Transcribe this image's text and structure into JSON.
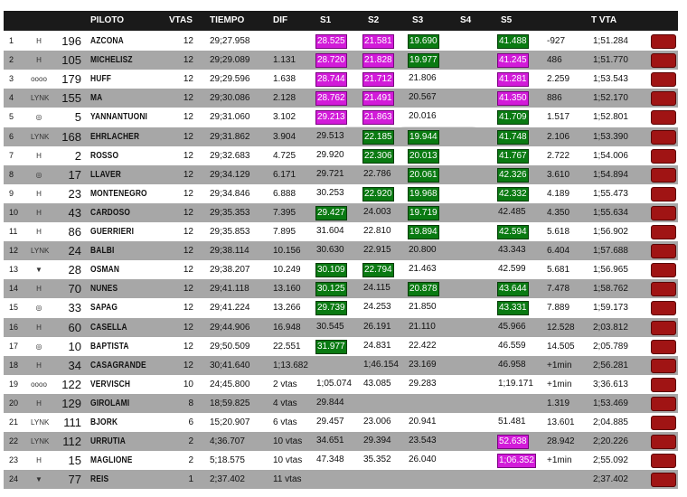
{
  "headers": {
    "piloto": "PILOTO",
    "vtas": "VTAS",
    "tiempo": "TIEMPO",
    "dif": "DIF",
    "s1": "S1",
    "s2": "S2",
    "s3": "S3",
    "s4": "S4",
    "s5": "S5",
    "tvta": "T VTA"
  },
  "colors": {
    "purple": "#d21bd9",
    "green": "#0a7a12",
    "flag": "#a01414",
    "header": "#1a1a1a",
    "row_alt": "#a7a7a7"
  },
  "rows": [
    {
      "pos": "1",
      "brand": "hyundai-logo",
      "logo": "H",
      "num": "196",
      "name": "AZCONA",
      "vtas": "12",
      "tiempo": "29;27.958",
      "dif": "",
      "s1": "28.525",
      "s1c": "purple",
      "s2": "21.581",
      "s2c": "purple",
      "s3": "19.690",
      "s3c": "green",
      "s4": "",
      "s5": "41.488",
      "s5c": "green",
      "gap": "-927",
      "best": "1;51.284"
    },
    {
      "pos": "2",
      "brand": "hyundai-logo",
      "logo": "H",
      "num": "105",
      "name": "MICHELISZ",
      "vtas": "12",
      "tiempo": "29;29.089",
      "dif": "1.131",
      "s1": "28.720",
      "s1c": "purple",
      "s2": "21.828",
      "s2c": "purple",
      "s3": "19.977",
      "s3c": "green",
      "s4": "",
      "s5": "41.245",
      "s5c": "purple",
      "gap": "486",
      "best": "1;51.770"
    },
    {
      "pos": "3",
      "brand": "audi-logo",
      "logo": "oooo",
      "num": "179",
      "name": "HUFF",
      "vtas": "12",
      "tiempo": "29;29.596",
      "dif": "1.638",
      "s1": "28.744",
      "s1c": "purple",
      "s2": "21.712",
      "s2c": "purple",
      "s3": "21.806",
      "s3c": "",
      "s4": "",
      "s5": "41.281",
      "s5c": "purple",
      "gap": "2.259",
      "best": "1;53.543"
    },
    {
      "pos": "4",
      "brand": "lynkco-logo",
      "logo": "LYNK",
      "num": "155",
      "name": "MA",
      "vtas": "12",
      "tiempo": "29;30.086",
      "dif": "2.128",
      "s1": "28.762",
      "s1c": "purple",
      "s2": "21.491",
      "s2c": "purple",
      "s3": "20.567",
      "s3c": "",
      "s4": "",
      "s5": "41.350",
      "s5c": "purple",
      "gap": "886",
      "best": "1;52.170"
    },
    {
      "pos": "5",
      "brand": "toyota-logo",
      "logo": "◎",
      "num": "5",
      "name": "YANNANTUONI",
      "vtas": "12",
      "tiempo": "29;31.060",
      "dif": "3.102",
      "s1": "29.213",
      "s1c": "purple",
      "s2": "21.863",
      "s2c": "purple",
      "s3": "20.016",
      "s3c": "",
      "s4": "",
      "s5": "41.709",
      "s5c": "green",
      "gap": "1.517",
      "best": "1;52.801"
    },
    {
      "pos": "6",
      "brand": "lynkco-logo",
      "logo": "LYNK",
      "num": "168",
      "name": "EHRLACHER",
      "vtas": "12",
      "tiempo": "29;31.862",
      "dif": "3.904",
      "s1": "29.513",
      "s1c": "",
      "s2": "22.185",
      "s2c": "green",
      "s3": "19.944",
      "s3c": "green",
      "s4": "",
      "s5": "41.748",
      "s5c": "green",
      "gap": "2.106",
      "best": "1;53.390"
    },
    {
      "pos": "7",
      "brand": "hyundai-logo",
      "logo": "H",
      "num": "2",
      "name": "ROSSO",
      "vtas": "12",
      "tiempo": "29;32.683",
      "dif": "4.725",
      "s1": "29.920",
      "s1c": "",
      "s2": "22.306",
      "s2c": "green",
      "s3": "20.013",
      "s3c": "green",
      "s4": "",
      "s5": "41.767",
      "s5c": "green",
      "gap": "2.722",
      "best": "1;54.006"
    },
    {
      "pos": "8",
      "brand": "toyota-logo",
      "logo": "◎",
      "num": "17",
      "name": "LLAVER",
      "vtas": "12",
      "tiempo": "29;34.129",
      "dif": "6.171",
      "s1": "29.721",
      "s1c": "",
      "s2": "22.786",
      "s2c": "",
      "s3": "20.061",
      "s3c": "green",
      "s4": "",
      "s5": "42.326",
      "s5c": "green",
      "gap": "3.610",
      "best": "1;54.894"
    },
    {
      "pos": "9",
      "brand": "honda-logo",
      "logo": "H",
      "num": "23",
      "name": "MONTENEGRO",
      "vtas": "12",
      "tiempo": "29;34.846",
      "dif": "6.888",
      "s1": "30.253",
      "s1c": "",
      "s2": "22.920",
      "s2c": "green",
      "s3": "19.968",
      "s3c": "green",
      "s4": "",
      "s5": "42.332",
      "s5c": "green",
      "gap": "4.189",
      "best": "1;55.473"
    },
    {
      "pos": "10",
      "brand": "hyundai-logo",
      "logo": "H",
      "num": "43",
      "name": "CARDOSO",
      "vtas": "12",
      "tiempo": "29;35.353",
      "dif": "7.395",
      "s1": "29.427",
      "s1c": "green",
      "s2": "24.003",
      "s2c": "",
      "s3": "19.719",
      "s3c": "green",
      "s4": "",
      "s5": "42.485",
      "s5c": "",
      "gap": "4.350",
      "best": "1;55.634"
    },
    {
      "pos": "11",
      "brand": "hyundai-logo",
      "logo": "H",
      "num": "86",
      "name": "GUERRIERI",
      "vtas": "12",
      "tiempo": "29;35.853",
      "dif": "7.895",
      "s1": "31.604",
      "s1c": "",
      "s2": "22.810",
      "s2c": "",
      "s3": "19.894",
      "s3c": "green",
      "s4": "",
      "s5": "42.594",
      "s5c": "green",
      "gap": "5.618",
      "best": "1;56.902"
    },
    {
      "pos": "12",
      "brand": "lynkco-logo",
      "logo": "LYNK",
      "num": "24",
      "name": "BALBI",
      "vtas": "12",
      "tiempo": "29;38.114",
      "dif": "10.156",
      "s1": "30.630",
      "s1c": "",
      "s2": "22.915",
      "s2c": "",
      "s3": "20.800",
      "s3c": "",
      "s4": "",
      "s5": "43.343",
      "s5c": "",
      "gap": "6.404",
      "best": "1;57.688"
    },
    {
      "pos": "13",
      "brand": "chevrolet-logo",
      "logo": "▼",
      "num": "28",
      "name": "OSMAN",
      "vtas": "12",
      "tiempo": "29;38.207",
      "dif": "10.249",
      "s1": "30.109",
      "s1c": "green",
      "s2": "22.794",
      "s2c": "green",
      "s3": "21.463",
      "s3c": "",
      "s4": "",
      "s5": "42.599",
      "s5c": "",
      "gap": "5.681",
      "best": "1;56.965"
    },
    {
      "pos": "14",
      "brand": "hyundai-logo",
      "logo": "H",
      "num": "70",
      "name": "NUNES",
      "vtas": "12",
      "tiempo": "29;41.118",
      "dif": "13.160",
      "s1": "30.125",
      "s1c": "green",
      "s2": "24.115",
      "s2c": "",
      "s3": "20.878",
      "s3c": "green",
      "s4": "",
      "s5": "43.644",
      "s5c": "green",
      "gap": "7.478",
      "best": "1;58.762"
    },
    {
      "pos": "15",
      "brand": "toyota-logo",
      "logo": "◎",
      "num": "33",
      "name": "SAPAG",
      "vtas": "12",
      "tiempo": "29;41.224",
      "dif": "13.266",
      "s1": "29.739",
      "s1c": "green",
      "s2": "24.253",
      "s2c": "",
      "s3": "21.850",
      "s3c": "",
      "s4": "",
      "s5": "43.331",
      "s5c": "green",
      "gap": "7.889",
      "best": "1;59.173"
    },
    {
      "pos": "16",
      "brand": "honda-logo",
      "logo": "H",
      "num": "60",
      "name": "CASELLA",
      "vtas": "12",
      "tiempo": "29;44.906",
      "dif": "16.948",
      "s1": "30.545",
      "s1c": "",
      "s2": "26.191",
      "s2c": "",
      "s3": "21.110",
      "s3c": "",
      "s4": "",
      "s5": "45.966",
      "s5c": "",
      "gap": "12.528",
      "best": "2;03.812"
    },
    {
      "pos": "17",
      "brand": "toyota-logo",
      "logo": "◎",
      "num": "10",
      "name": "BAPTISTA",
      "vtas": "12",
      "tiempo": "29;50.509",
      "dif": "22.551",
      "s1": "31.977",
      "s1c": "green",
      "s2": "24.831",
      "s2c": "",
      "s3": "22.422",
      "s3c": "",
      "s4": "",
      "s5": "46.559",
      "s5c": "",
      "gap": "14.505",
      "best": "2;05.789"
    },
    {
      "pos": "18",
      "brand": "honda-logo",
      "logo": "H",
      "num": "34",
      "name": "CASAGRANDE",
      "vtas": "12",
      "tiempo": "30;41.640",
      "dif": "1;13.682",
      "s1": "",
      "s1c": "",
      "s2": "1;46.154",
      "s2c": "",
      "s3": "23.169",
      "s3c": "",
      "s4": "",
      "s5": "46.958",
      "s5c": "",
      "gap": "+1min",
      "best": "2;56.281"
    },
    {
      "pos": "19",
      "brand": "audi-logo",
      "logo": "oooo",
      "num": "122",
      "name": "VERVISCH",
      "vtas": "10",
      "tiempo": "24;45.800",
      "dif": "2 vtas",
      "s1": "1;05.074",
      "s1c": "",
      "s2": "43.085",
      "s2c": "",
      "s3": "29.283",
      "s3c": "",
      "s4": "",
      "s5": "1;19.171",
      "s5c": "",
      "gap": "+1min",
      "best": "3;36.613"
    },
    {
      "pos": "20",
      "brand": "honda-logo",
      "logo": "H",
      "num": "129",
      "name": "GIROLAMI",
      "vtas": "8",
      "tiempo": "18;59.825",
      "dif": "4 vtas",
      "s1": "29.844",
      "s1c": "",
      "s2": "",
      "s2c": "",
      "s3": "",
      "s3c": "",
      "s4": "",
      "s5": "",
      "s5c": "",
      "gap": "1.319",
      "best": "1;53.469"
    },
    {
      "pos": "21",
      "brand": "lynkco-logo",
      "logo": "LYNK",
      "num": "111",
      "name": "BJORK",
      "vtas": "6",
      "tiempo": "15;20.907",
      "dif": "6 vtas",
      "s1": "29.457",
      "s1c": "",
      "s2": "23.006",
      "s2c": "",
      "s3": "20.941",
      "s3c": "",
      "s4": "",
      "s5": "51.481",
      "s5c": "",
      "gap": "13.601",
      "best": "2;04.885"
    },
    {
      "pos": "22",
      "brand": "lynkco-logo",
      "logo": "LYNK",
      "num": "112",
      "name": "URRUTIA",
      "vtas": "2",
      "tiempo": "4;36.707",
      "dif": "10 vtas",
      "s1": "34.651",
      "s1c": "",
      "s2": "29.394",
      "s2c": "",
      "s3": "23.543",
      "s3c": "",
      "s4": "",
      "s5": "52.638",
      "s5c": "purple",
      "gap": "28.942",
      "best": "2;20.226"
    },
    {
      "pos": "23",
      "brand": "honda-logo",
      "logo": "H",
      "num": "15",
      "name": "MAGLIONE",
      "vtas": "2",
      "tiempo": "5;18.575",
      "dif": "10 vtas",
      "s1": "47.348",
      "s1c": "",
      "s2": "35.352",
      "s2c": "",
      "s3": "26.040",
      "s3c": "",
      "s4": "",
      "s5": "1;06.352",
      "s5c": "purple",
      "gap": "+1min",
      "best": "2;55.092"
    },
    {
      "pos": "24",
      "brand": "chevrolet-logo",
      "logo": "▼",
      "num": "77",
      "name": "REIS",
      "vtas": "1",
      "tiempo": "2;37.402",
      "dif": "11 vtas",
      "s1": "",
      "s1c": "",
      "s2": "",
      "s2c": "",
      "s3": "",
      "s3c": "",
      "s4": "",
      "s5": "",
      "s5c": "",
      "gap": "",
      "best": "2;37.402"
    }
  ]
}
